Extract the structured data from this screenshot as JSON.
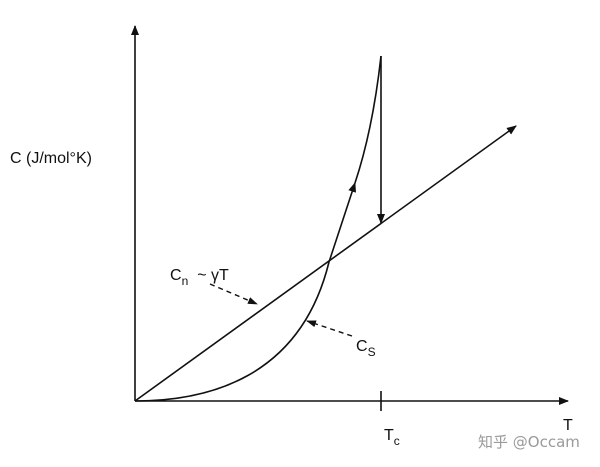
{
  "axes": {
    "y_label": "C (J/mol°K)",
    "x_label": "T",
    "tc_main": "T",
    "tc_sub": "c"
  },
  "curves": {
    "cn_main": "C",
    "cn_sub": "n",
    "cn_suffix": "~ γT",
    "cs_main": "C",
    "cs_sub": "S"
  },
  "watermark": "知乎 @Occam",
  "colors": {
    "ink": "#111111",
    "watermark": "#9a9a9a"
  }
}
